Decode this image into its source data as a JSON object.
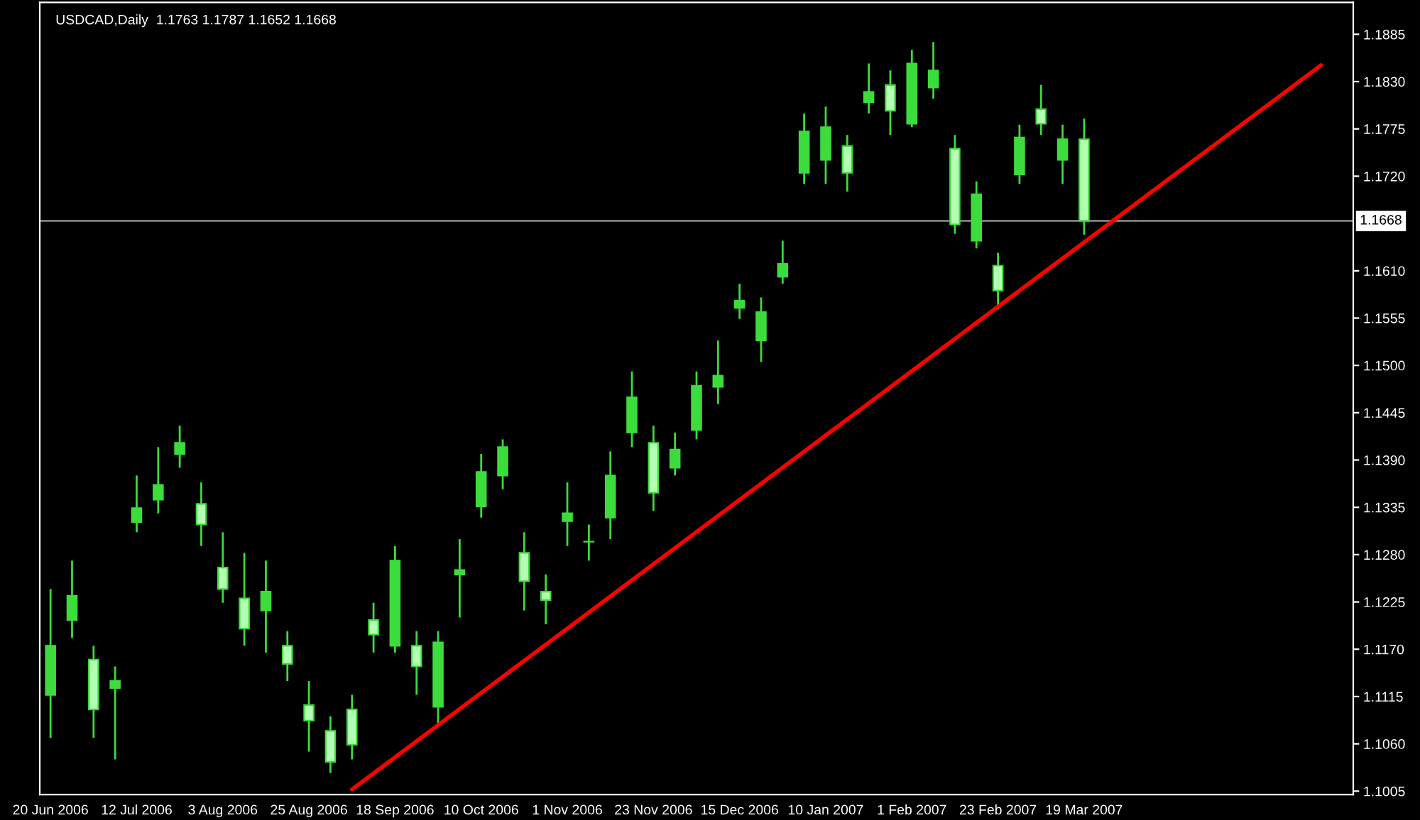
{
  "chart_data": {
    "type": "candlestick",
    "title": "USDCAD,Daily  1.1763 1.1787 1.1652 1.1668",
    "categories": [
      "20 Jun 2006",
      null,
      null,
      null,
      "12 Jul 2006",
      null,
      null,
      null,
      "3 Aug 2006",
      null,
      null,
      null,
      "25 Aug 2006",
      null,
      null,
      null,
      "18 Sep 2006",
      null,
      null,
      null,
      "10 Oct 2006",
      null,
      null,
      null,
      "1 Nov 2006",
      null,
      null,
      null,
      "23 Nov 2006",
      null,
      null,
      null,
      "15 Dec 2006",
      null,
      null,
      null,
      "10 Jan 2007",
      null,
      null,
      null,
      "1 Feb 2007",
      null,
      null,
      null,
      "23 Feb 2007",
      null,
      null,
      null,
      "19 Mar 2007",
      null,
      null,
      null,
      null,
      null,
      null,
      null,
      null,
      null,
      null,
      null,
      null
    ],
    "series": [
      {
        "color": "#3cdc3c",
        "ohlc": [
          [
            1.1117,
            1.124,
            1.1067,
            1.1174
          ],
          [
            1.1204,
            1.1273,
            1.1183,
            1.1232
          ],
          [
            1.1158,
            1.1174,
            1.1067,
            1.11
          ],
          [
            1.1125,
            1.115,
            1.1042,
            1.1133
          ],
          [
            1.1318,
            1.1372,
            1.1306,
            1.1334
          ],
          [
            1.1344,
            1.1405,
            1.1328,
            1.1361
          ],
          [
            1.1397,
            1.143,
            1.1381,
            1.141
          ],
          [
            1.1339,
            1.1364,
            1.129,
            1.1315
          ],
          [
            1.1265,
            1.1306,
            1.1224,
            1.124
          ],
          [
            1.1229,
            1.1282,
            1.1174,
            1.1194
          ],
          [
            1.1215,
            1.1273,
            1.1166,
            1.1237
          ],
          [
            1.1174,
            1.1191,
            1.1133,
            1.1153
          ],
          [
            1.1105,
            1.1133,
            1.1051,
            1.1087
          ],
          [
            1.1075,
            1.1092,
            1.1026,
            1.1039
          ],
          [
            1.11,
            1.1117,
            1.1042,
            1.1059
          ],
          [
            1.1204,
            1.1224,
            1.1166,
            1.1187
          ],
          [
            1.1174,
            1.129,
            1.1166,
            1.1273
          ],
          [
            1.1174,
            1.1191,
            1.1117,
            1.115
          ],
          [
            1.1103,
            1.1191,
            1.1084,
            1.1178
          ],
          [
            1.1257,
            1.1298,
            1.1207,
            1.1262
          ],
          [
            1.1336,
            1.1397,
            1.1323,
            1.1376
          ],
          [
            1.1372,
            1.1414,
            1.1356,
            1.1405
          ],
          [
            1.1282,
            1.1306,
            1.1215,
            1.1249
          ],
          [
            1.1237,
            1.1257,
            1.1199,
            1.1227
          ],
          [
            1.1319,
            1.1364,
            1.129,
            1.1328
          ],
          [
            1.1295,
            1.1315,
            1.1273,
            1.1295
          ],
          [
            1.1323,
            1.14,
            1.1298,
            1.1372
          ],
          [
            1.1422,
            1.1493,
            1.1405,
            1.1463
          ],
          [
            1.141,
            1.143,
            1.1331,
            1.1352
          ],
          [
            1.1381,
            1.1422,
            1.1372,
            1.1402
          ],
          [
            1.1425,
            1.1493,
            1.1414,
            1.1476
          ],
          [
            1.1475,
            1.1529,
            1.1455,
            1.1488
          ],
          [
            1.1567,
            1.1595,
            1.1554,
            1.1575
          ],
          [
            1.1529,
            1.1579,
            1.1504,
            1.1562
          ],
          [
            1.1603,
            1.1645,
            1.1595,
            1.1618
          ],
          [
            1.1724,
            1.1793,
            1.1711,
            1.1772
          ],
          [
            1.1739,
            1.1801,
            1.1711,
            1.1777
          ],
          [
            1.1755,
            1.1768,
            1.1702,
            1.1724
          ],
          [
            1.1806,
            1.1851,
            1.1793,
            1.1818
          ],
          [
            1.1826,
            1.1843,
            1.1768,
            1.1796
          ],
          [
            1.1781,
            1.1867,
            1.1777,
            1.1851
          ],
          [
            1.1823,
            1.1876,
            1.181,
            1.1843
          ],
          [
            1.1752,
            1.1768,
            1.1653,
            1.1664
          ],
          [
            1.1645,
            1.1714,
            1.1636,
            1.1699
          ],
          [
            1.1616,
            1.1631,
            1.1565,
            1.1587
          ],
          [
            1.1722,
            1.178,
            1.1711,
            1.1765
          ],
          [
            1.1798,
            1.1826,
            1.1768,
            1.1781
          ],
          [
            1.1739,
            1.178,
            1.1711,
            1.1763
          ],
          [
            1.1763,
            1.1787,
            1.1652,
            1.1668
          ],
          null,
          null,
          null,
          null,
          null,
          null,
          null,
          null,
          null,
          null,
          null,
          null
        ]
      },
      {
        "type": "line",
        "color": "#ff0000",
        "values": [
          null,
          null,
          null,
          null,
          null,
          null,
          null,
          null,
          null,
          null,
          null,
          null,
          null,
          null,
          1.1007,
          null,
          null,
          null,
          null,
          null,
          null,
          null,
          null,
          null,
          null,
          null,
          null,
          null,
          null,
          null,
          null,
          null,
          null,
          null,
          null,
          null,
          null,
          null,
          null,
          null,
          null,
          null,
          null,
          null,
          null,
          null,
          null,
          null,
          null,
          null,
          null,
          null,
          null,
          null,
          null,
          null,
          null,
          null,
          null,
          1.1849,
          null
        ]
      }
    ],
    "ref_lines": [
      {
        "axis": "y",
        "value": 1.1668,
        "label": "1.1668",
        "color": "#808080"
      }
    ],
    "ylim": [
      1.1001,
      1.1922
    ],
    "yticks": [
      1.1005,
      {
        "value": 1.106,
        "label": "1.1060"
      },
      1.1115,
      {
        "value": 1.117,
        "label": "1.1170"
      },
      1.1225,
      {
        "value": 1.128,
        "label": "1.1280"
      },
      1.1335,
      {
        "value": 1.139,
        "label": "1.1390"
      },
      1.1445,
      {
        "value": 1.15,
        "label": "1.1500"
      },
      1.1555,
      {
        "value": 1.161,
        "label": "1.1610"
      },
      {
        "value": 1.172,
        "label": "1.1720"
      },
      1.1775,
      {
        "value": 1.183,
        "label": "1.1830"
      },
      1.1885
    ],
    "grid": false
  }
}
